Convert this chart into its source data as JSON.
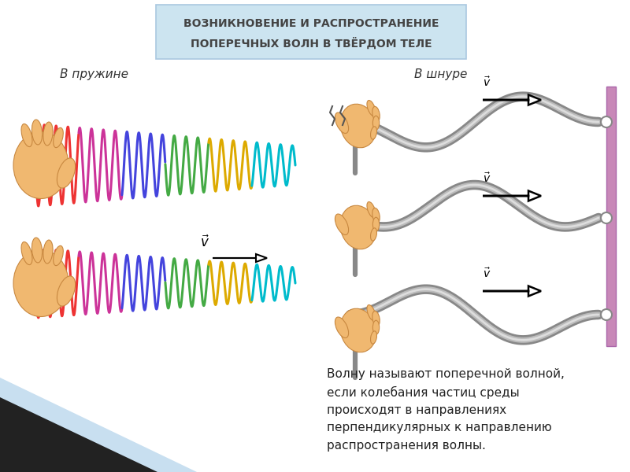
{
  "title_line1": "ВОЗНИКНОВЕНИЕ И РАСПРОСТРАНЕНИЕ",
  "title_line2": "ПОПЕРЕЧНЫХ ВОЛН В ТВЁРДОМ ТЕЛЕ",
  "title_bg": "#cce4f0",
  "title_border": "#aac8e0",
  "label_spring": "В пружине",
  "label_rope": "В шнуре",
  "desc_text": "Волну называют поперечной волной,\nесли колебания частиц среды\nпроисходят в направлениях\nперпендикулярных к направлению\nраспространения волны.",
  "bg_color": "#ffffff",
  "wall_color_face": "#c888b8",
  "wall_color_edge": "#aa66aa",
  "rope_dark": "#888888",
  "rope_mid": "#bbbbbb",
  "rope_light": "#dddddd",
  "hand_color": "#f0b870",
  "hand_edge": "#c88840",
  "spring_colors": [
    "#ee3333",
    "#cc3399",
    "#4444dd",
    "#44aa44",
    "#ddaa00",
    "#00bbcc"
  ],
  "title_fontsize": 10,
  "label_fontsize": 11,
  "desc_fontsize": 11,
  "arrow_outline_color": "#000000",
  "arrow_fill_color": "#ffffff"
}
